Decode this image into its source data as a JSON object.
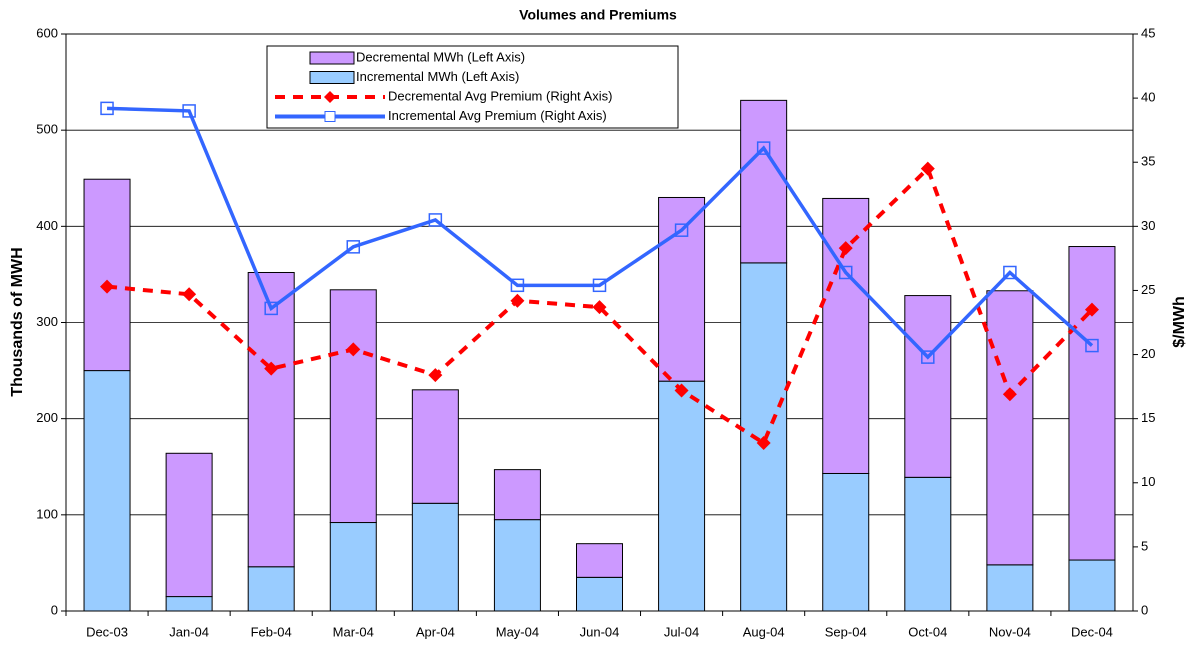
{
  "chart_data": {
    "type": "bar",
    "title": "Volumes and Premiums",
    "stacked": true,
    "categories": [
      "Dec-03",
      "Jan-04",
      "Feb-04",
      "Mar-04",
      "Apr-04",
      "May-04",
      "Jun-04",
      "Jul-04",
      "Aug-04",
      "Sep-04",
      "Oct-04",
      "Nov-04",
      "Dec-04"
    ],
    "series": [
      {
        "name": "Decremental MWh (Left Axis)",
        "kind": "bar",
        "color": "#cc99ff",
        "values": [
          199,
          149,
          306,
          242,
          118,
          52,
          35,
          191,
          169,
          286,
          189,
          285,
          326
        ]
      },
      {
        "name": "Incremental MWh (Left Axis)",
        "kind": "bar",
        "color": "#99ccff",
        "values": [
          250,
          15,
          46,
          92,
          112,
          95,
          35,
          239,
          362,
          143,
          139,
          48,
          53
        ]
      },
      {
        "name": "Decremental Avg Premium (Right Axis)",
        "kind": "line",
        "axis": "y2",
        "color": "#ff0000",
        "dashed": true,
        "marker": "diamond",
        "values": [
          25.3,
          24.7,
          18.9,
          20.4,
          18.4,
          24.2,
          23.7,
          17.2,
          13.1,
          28.3,
          34.5,
          16.9,
          23.5
        ]
      },
      {
        "name": "Incremental Avg Premium (Right Axis)",
        "kind": "line",
        "axis": "y2",
        "color": "#3366ff",
        "dashed": false,
        "marker": "square",
        "values": [
          39.2,
          39.0,
          23.6,
          28.4,
          30.5,
          25.4,
          25.4,
          29.7,
          36.1,
          26.4,
          19.8,
          26.4,
          20.7
        ]
      }
    ],
    "ylabel": "Thousands of MWH",
    "y2label": "$/MWh",
    "ylim": [
      0,
      600
    ],
    "yticks": [
      0,
      100,
      200,
      300,
      400,
      500,
      600
    ],
    "y2lim": [
      0,
      45
    ],
    "y2ticks": [
      0,
      5,
      10,
      15,
      20,
      25,
      30,
      35,
      40,
      45
    ],
    "grid": true
  }
}
